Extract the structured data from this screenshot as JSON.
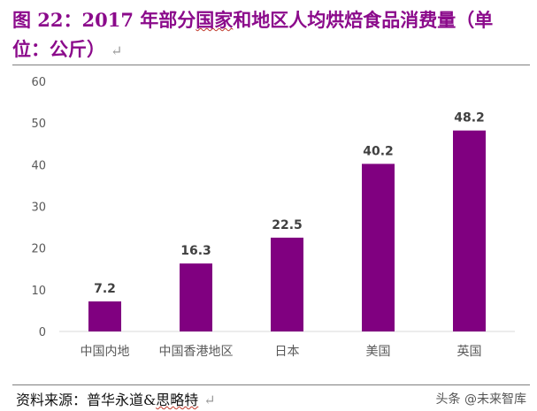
{
  "header": {
    "title_prefix": "图 22：2017 年部分",
    "title_underlined": "国家",
    "title_suffix": "和地区人均烘焙食品消费量（单位：公斤）",
    "pilcrow": "↵"
  },
  "footer": {
    "source_prefix": "资料来源：普华永道&",
    "source_underlined": "思略特",
    "pilcrow": "↵",
    "watermark": "头条 @未来智库"
  },
  "colors": {
    "bar": "#800080",
    "axis": "#d9d9d9",
    "text": "#595959",
    "title": "#8B0A8B"
  },
  "chart_data": {
    "type": "bar",
    "categories": [
      "中国内地",
      "中国香港地区",
      "日本",
      "美国",
      "英国"
    ],
    "values": [
      7.2,
      16.3,
      22.5,
      40.2,
      48.2
    ],
    "data_labels": [
      "7.2",
      "16.3",
      "22.5",
      "40.2",
      "48.2"
    ],
    "yticks": [
      "0",
      "10",
      "20",
      "30",
      "40",
      "50",
      "60"
    ],
    "ylim": [
      0,
      60
    ],
    "grid": false,
    "legend": "none"
  }
}
